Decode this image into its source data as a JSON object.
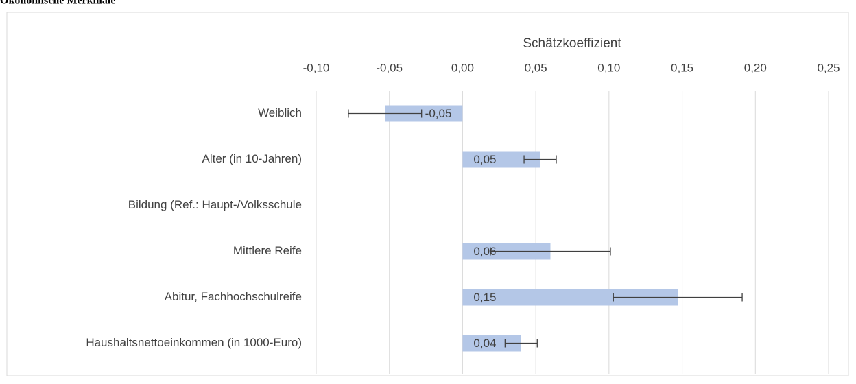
{
  "chart_data": {
    "type": "bar",
    "title": "Ökonomische Merkmale",
    "x_label": "Schätzkoeffizient",
    "orientation": "horizontal",
    "categories": [
      "Weiblich",
      "Alter (in 10-Jahren)",
      "Bildung (Ref.: Haupt-/Volksschule",
      "Mittlere Reife",
      "Abitur, Fachhochschulreife",
      "Haushaltsnettoeinkommen (in 1000-Euro)"
    ],
    "values": [
      -0.053,
      0.053,
      null,
      0.06,
      0.147,
      0.04
    ],
    "errors": [
      0.025,
      0.011,
      null,
      0.041,
      0.044,
      0.011
    ],
    "value_labels": [
      "-0,05",
      "0,05",
      null,
      "0,06",
      "0,15",
      "0,04"
    ],
    "color": "#b4c7e7",
    "error_color": "#404040",
    "xlim": [
      -0.1,
      0.25
    ],
    "xticks": [
      {
        "value": -0.1,
        "label": "-0,10"
      },
      {
        "value": -0.05,
        "label": "-0,05"
      },
      {
        "value": 0,
        "label": "0,00"
      },
      {
        "value": 0.05,
        "label": "0,05"
      },
      {
        "value": 0.1,
        "label": "0,10"
      },
      {
        "value": 0.15,
        "label": "0,15"
      },
      {
        "value": 0.2,
        "label": "0,20"
      },
      {
        "value": 0.25,
        "label": "0,25"
      }
    ],
    "grid": true
  }
}
